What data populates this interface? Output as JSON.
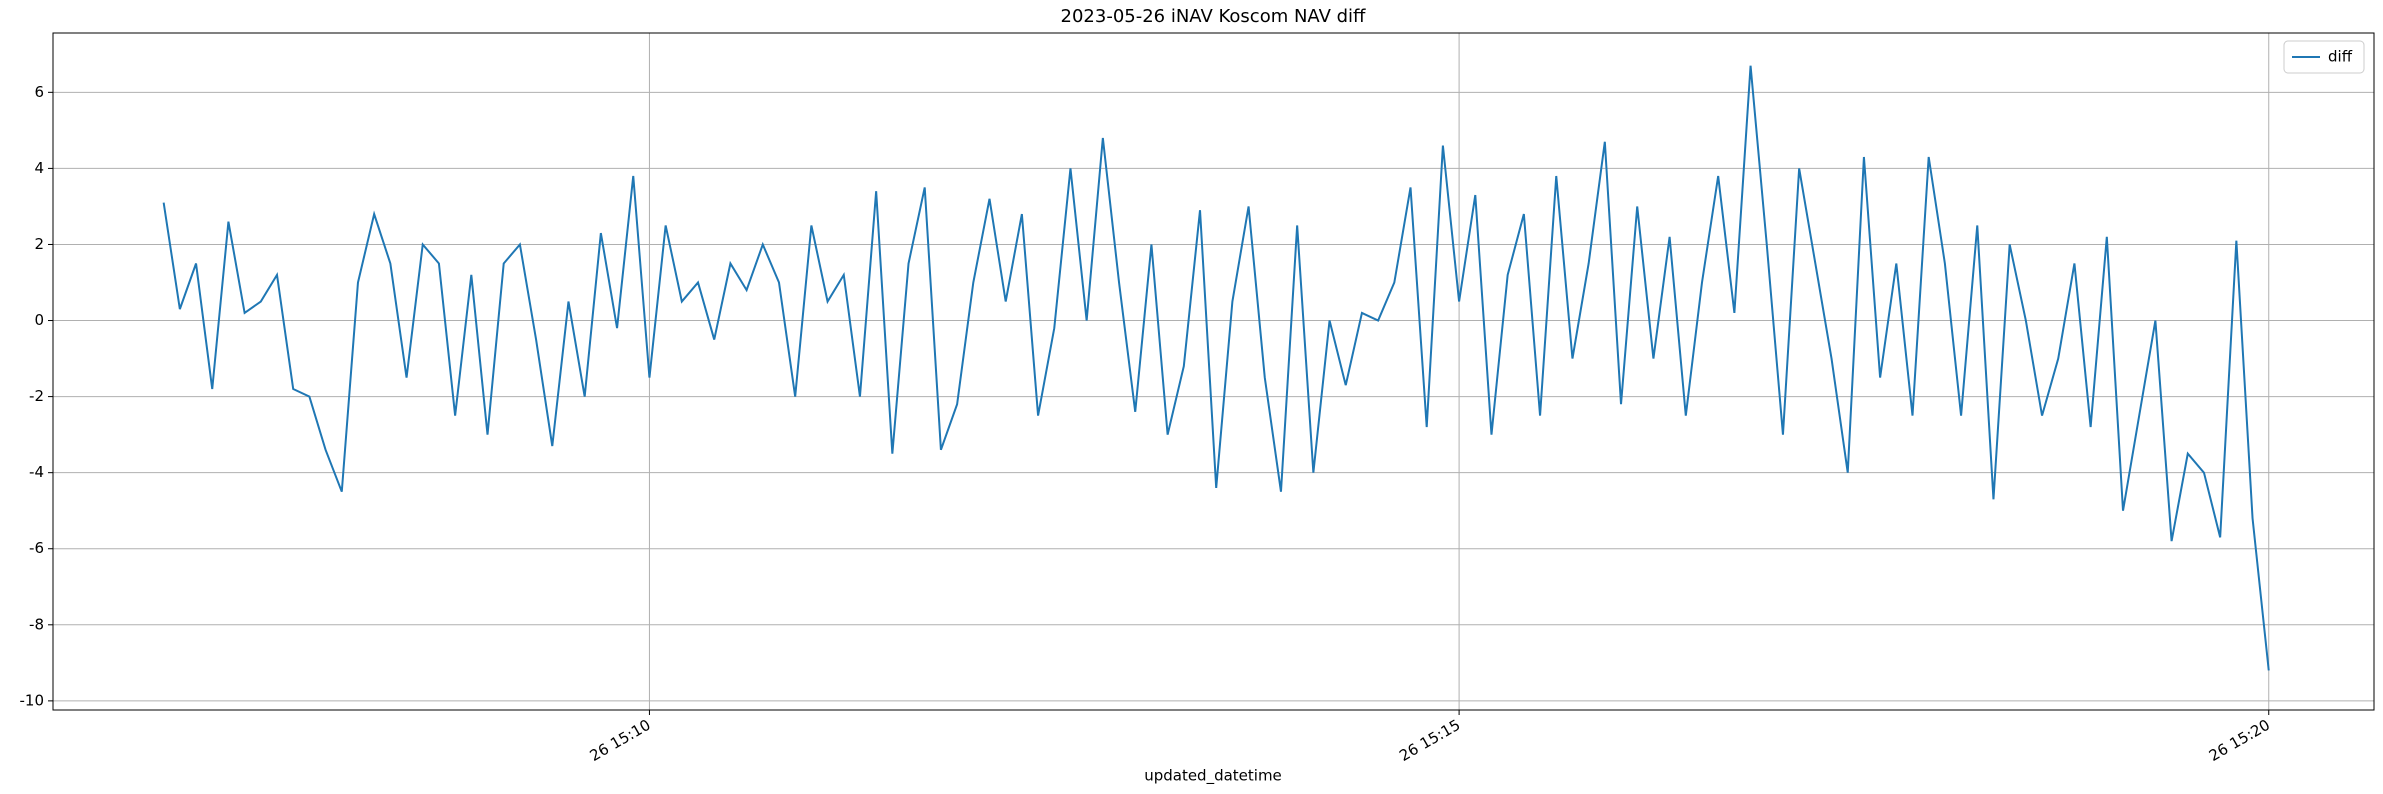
{
  "chart_data": {
    "type": "line",
    "title": "2023-05-26 iNAV Koscom NAV diff",
    "x_label": "updated_datetime",
    "x": [
      "26 15:07:00",
      "26 15:07:06",
      "26 15:07:12",
      "26 15:07:18",
      "26 15:07:24",
      "26 15:07:30",
      "26 15:07:36",
      "26 15:07:42",
      "26 15:07:48",
      "26 15:07:54",
      "26 15:08:00",
      "26 15:08:06",
      "26 15:08:12",
      "26 15:08:18",
      "26 15:08:24",
      "26 15:08:30",
      "26 15:08:36",
      "26 15:08:42",
      "26 15:08:48",
      "26 15:08:54",
      "26 15:09:00",
      "26 15:09:06",
      "26 15:09:12",
      "26 15:09:18",
      "26 15:09:24",
      "26 15:09:30",
      "26 15:09:36",
      "26 15:09:42",
      "26 15:09:48",
      "26 15:09:54",
      "26 15:10:00",
      "26 15:10:06",
      "26 15:10:12",
      "26 15:10:18",
      "26 15:10:24",
      "26 15:10:30",
      "26 15:10:36",
      "26 15:10:42",
      "26 15:10:48",
      "26 15:10:54",
      "26 15:11:00",
      "26 15:11:06",
      "26 15:11:12",
      "26 15:11:18",
      "26 15:11:24",
      "26 15:11:30",
      "26 15:11:36",
      "26 15:11:42",
      "26 15:11:48",
      "26 15:11:54",
      "26 15:12:00",
      "26 15:12:06",
      "26 15:12:12",
      "26 15:12:18",
      "26 15:12:24",
      "26 15:12:30",
      "26 15:12:36",
      "26 15:12:42",
      "26 15:12:48",
      "26 15:12:54",
      "26 15:13:00",
      "26 15:13:06",
      "26 15:13:12",
      "26 15:13:18",
      "26 15:13:24",
      "26 15:13:30",
      "26 15:13:36",
      "26 15:13:42",
      "26 15:13:48",
      "26 15:13:54",
      "26 15:14:00",
      "26 15:14:06",
      "26 15:14:12",
      "26 15:14:18",
      "26 15:14:24",
      "26 15:14:30",
      "26 15:14:36",
      "26 15:14:42",
      "26 15:14:48",
      "26 15:14:54",
      "26 15:15:00",
      "26 15:15:06",
      "26 15:15:12",
      "26 15:15:18",
      "26 15:15:24",
      "26 15:15:30",
      "26 15:15:36",
      "26 15:15:42",
      "26 15:15:48",
      "26 15:15:54",
      "26 15:16:00",
      "26 15:16:06",
      "26 15:16:12",
      "26 15:16:18",
      "26 15:16:24",
      "26 15:16:30",
      "26 15:16:36",
      "26 15:16:42",
      "26 15:16:48",
      "26 15:16:54",
      "26 15:17:00",
      "26 15:17:06",
      "26 15:17:12",
      "26 15:17:18",
      "26 15:17:24",
      "26 15:17:30",
      "26 15:17:36",
      "26 15:17:42",
      "26 15:17:48",
      "26 15:17:54",
      "26 15:18:00",
      "26 15:18:06",
      "26 15:18:12",
      "26 15:18:18",
      "26 15:18:24",
      "26 15:18:30",
      "26 15:18:36",
      "26 15:18:42",
      "26 15:18:48",
      "26 15:18:54",
      "26 15:19:00",
      "26 15:19:06",
      "26 15:19:12",
      "26 15:19:18",
      "26 15:19:24",
      "26 15:19:30",
      "26 15:19:36",
      "26 15:19:42",
      "26 15:19:48",
      "26 15:19:54",
      "26 15:20:00"
    ],
    "series": [
      {
        "name": "diff",
        "color": "#1f77b4",
        "values": [
          3.1,
          0.3,
          1.5,
          -1.8,
          2.6,
          0.2,
          0.5,
          1.2,
          -1.8,
          -2.0,
          -3.4,
          -4.5,
          1.0,
          2.8,
          1.5,
          -1.5,
          2.0,
          1.5,
          -2.5,
          1.2,
          -3.0,
          1.5,
          2.0,
          -0.5,
          -3.3,
          0.5,
          -2.0,
          2.3,
          -0.2,
          3.8,
          -1.5,
          2.5,
          0.5,
          1.0,
          -0.5,
          1.5,
          0.8,
          2.0,
          1.0,
          -2.0,
          2.5,
          0.5,
          1.2,
          -2.0,
          3.4,
          -3.5,
          1.5,
          3.5,
          -3.4,
          -2.2,
          1.0,
          3.2,
          0.5,
          2.8,
          -2.5,
          -0.2,
          4.0,
          0.0,
          4.8,
          1.0,
          -2.4,
          2.0,
          -3.0,
          -1.2,
          2.9,
          -4.4,
          0.5,
          3.0,
          -1.5,
          -4.5,
          2.5,
          -4.0,
          0.0,
          -1.7,
          0.2,
          0.0,
          1.0,
          3.5,
          -2.8,
          4.6,
          0.5,
          3.3,
          -3.0,
          1.2,
          2.8,
          -2.5,
          3.8,
          -1.0,
          1.5,
          4.7,
          -2.2,
          3.0,
          -1.0,
          2.2,
          -2.5,
          1.0,
          3.8,
          0.2,
          6.7,
          2.0,
          -3.0,
          4.0,
          1.5,
          -1.0,
          -4.0,
          4.3,
          -1.5,
          1.5,
          -2.5,
          4.3,
          1.5,
          -2.5,
          2.5,
          -4.7,
          2.0,
          0.0,
          -2.5,
          -1.0,
          1.5,
          -2.8,
          2.2,
          -5.0,
          -2.5,
          0.0,
          -5.8,
          -3.5,
          -4.0,
          -5.7,
          2.1,
          -5.2,
          -9.2
        ]
      }
    ],
    "xlim": [
      "26 15:06:19",
      "26 15:20:39"
    ],
    "xticks": [
      {
        "value": "26 15:10:00",
        "label": "26 15:10"
      },
      {
        "value": "26 15:15:00",
        "label": "26 15:15"
      },
      {
        "value": "26 15:20:00",
        "label": "26 15:20"
      }
    ],
    "ylim": [
      -10.24,
      7.56
    ],
    "yticks": [
      -10,
      -8,
      -6,
      -4,
      -2,
      0,
      2,
      4,
      6
    ],
    "grid": true,
    "legend": "upper right"
  }
}
